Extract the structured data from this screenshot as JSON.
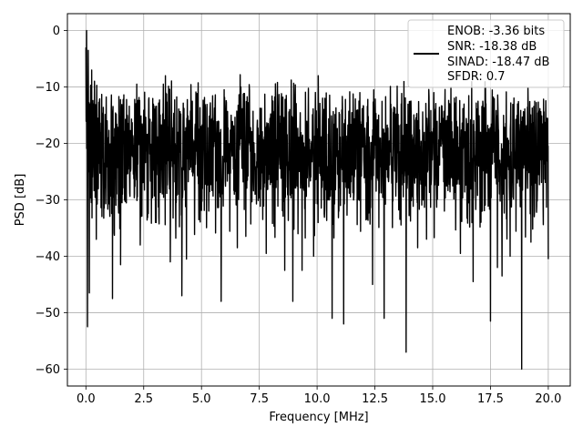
{
  "chart_data": {
    "type": "line",
    "title": "",
    "xlabel": "Frequency [MHz]",
    "ylabel": "PSD [dB]",
    "xlim": [
      -0.8,
      20.95
    ],
    "ylim": [
      -63.0,
      3.0
    ],
    "xticks": [
      0.0,
      2.5,
      5.0,
      7.5,
      10.0,
      12.5,
      15.0,
      17.5,
      20.0
    ],
    "xtick_labels": [
      "0.0",
      "2.5",
      "5.0",
      "7.5",
      "10.0",
      "12.5",
      "15.0",
      "17.5",
      "20.0"
    ],
    "yticks": [
      0,
      -10,
      -20,
      -30,
      -40,
      -50,
      -60
    ],
    "ytick_labels": [
      "0",
      "−10",
      "−20",
      "−30",
      "−40",
      "−50",
      "−60"
    ],
    "grid": true,
    "legend": {
      "placement": "top-right",
      "entries": [
        "ENOB: -3.36 bits",
        "SNR: -18.38 dB",
        "SINAD: -18.47 dB",
        "SFDR: 0.7"
      ]
    },
    "series": [
      {
        "color": "#000000",
        "x_range": [
          0.0,
          20.0
        ],
        "num_points": 2048,
        "noise_floor_db": -21.0,
        "typical_low_db": -30.0,
        "typical_high_db": -13.0,
        "peak_db": 0.0,
        "notable_dips": [
          {
            "x": 0.07,
            "y": -52.5
          },
          {
            "x": 0.15,
            "y": -46.5
          },
          {
            "x": 0.45,
            "y": -37.0
          },
          {
            "x": 1.15,
            "y": -47.5
          },
          {
            "x": 1.5,
            "y": -41.5
          },
          {
            "x": 2.35,
            "y": -38.0
          },
          {
            "x": 3.65,
            "y": -41.0
          },
          {
            "x": 4.15,
            "y": -47.0
          },
          {
            "x": 4.35,
            "y": -40.5
          },
          {
            "x": 5.85,
            "y": -48.0
          },
          {
            "x": 6.55,
            "y": -38.5
          },
          {
            "x": 7.8,
            "y": -39.5
          },
          {
            "x": 8.6,
            "y": -42.5
          },
          {
            "x": 8.95,
            "y": -48.0
          },
          {
            "x": 9.35,
            "y": -42.5
          },
          {
            "x": 9.85,
            "y": -40.0
          },
          {
            "x": 10.65,
            "y": -51.0
          },
          {
            "x": 11.15,
            "y": -52.0
          },
          {
            "x": 11.85,
            "y": -39.5
          },
          {
            "x": 12.4,
            "y": -45.0
          },
          {
            "x": 12.9,
            "y": -51.0
          },
          {
            "x": 13.85,
            "y": -57.0
          },
          {
            "x": 14.35,
            "y": -38.5
          },
          {
            "x": 15.05,
            "y": -38.0
          },
          {
            "x": 16.2,
            "y": -39.5
          },
          {
            "x": 16.75,
            "y": -44.5
          },
          {
            "x": 17.5,
            "y": -51.5
          },
          {
            "x": 17.8,
            "y": -42.0
          },
          {
            "x": 18.0,
            "y": -43.5
          },
          {
            "x": 18.35,
            "y": -40.0
          },
          {
            "x": 18.85,
            "y": -60.0
          },
          {
            "x": 19.25,
            "y": -37.5
          },
          {
            "x": 20.0,
            "y": -40.5
          }
        ],
        "notable_peaks": [
          {
            "x": 0.03,
            "y": 0.0
          },
          {
            "x": 0.1,
            "y": -3.5
          },
          {
            "x": 0.25,
            "y": -7.0
          },
          {
            "x": 2.2,
            "y": -9.5
          },
          {
            "x": 3.35,
            "y": -9.5
          },
          {
            "x": 10.05,
            "y": -8.0
          },
          {
            "x": 11.85,
            "y": -11.0
          },
          {
            "x": 12.45,
            "y": -10.5
          },
          {
            "x": 15.05,
            "y": -11.0
          }
        ]
      }
    ]
  }
}
